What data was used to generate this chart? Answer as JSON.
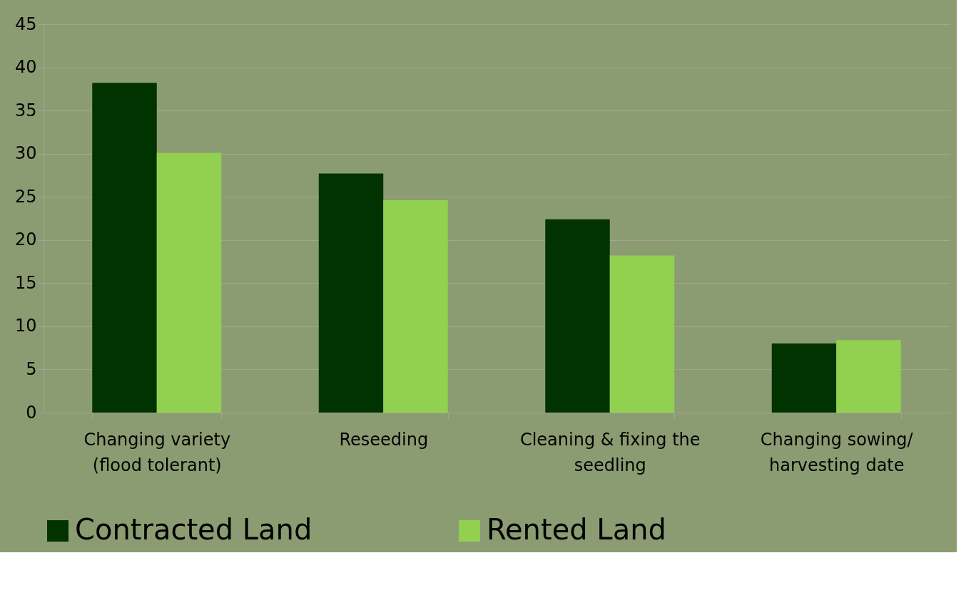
{
  "chart_data": {
    "type": "bar",
    "categories": [
      "Changing variety (flood tolerant)",
      "Reseeding",
      "Cleaning & fixing the seedling",
      "Changing sowing/ harvesting date"
    ],
    "series": [
      {
        "name": "Contracted Land",
        "color": "#003300",
        "values": [
          38.2,
          27.7,
          22.4,
          8.0
        ]
      },
      {
        "name": "Rented Land",
        "color": "#92d050",
        "values": [
          30.1,
          24.6,
          18.2,
          8.4
        ]
      }
    ],
    "ylim": [
      0,
      45
    ],
    "yticks": [
      0,
      5,
      10,
      15,
      20,
      25,
      30,
      35,
      40,
      45
    ],
    "grid": "y",
    "legend": "bottom"
  }
}
